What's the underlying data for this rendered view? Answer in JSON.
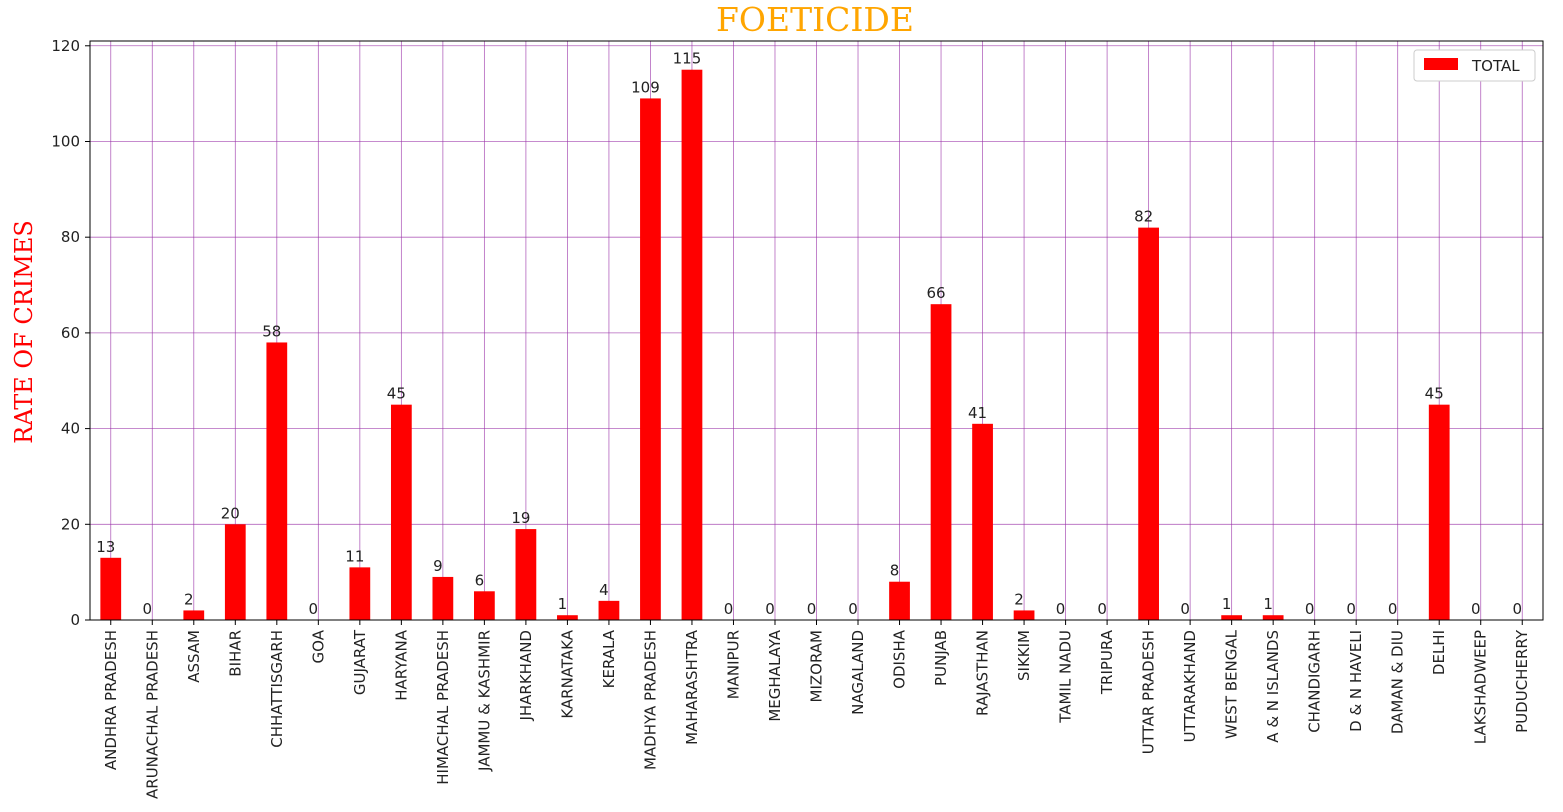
{
  "chart_data": {
    "type": "bar",
    "title": "FOETICIDE",
    "xlabel": "",
    "ylabel": "RATE OF CRIMES",
    "ylim": [
      0,
      121
    ],
    "yticks": [
      0,
      20,
      40,
      60,
      80,
      100,
      120
    ],
    "grid": true,
    "legend_position": "top-right",
    "categories": [
      "ANDHRA PRADESH",
      "ARUNACHAL PRADESH",
      "ASSAM",
      "BIHAR",
      "CHHATTISGARH",
      "GOA",
      "GUJARAT",
      "HARYANA",
      "HIMACHAL PRADESH",
      "JAMMU & KASHMIR",
      "JHARKHAND",
      "KARNATAKA",
      "KERALA",
      "MADHYA PRADESH",
      "MAHARASHTRA",
      "MANIPUR",
      "MEGHALAYA",
      "MIZORAM",
      "NAGALAND",
      "ODISHA",
      "PUNJAB",
      "RAJASTHAN",
      "SIKKIM",
      "TAMIL NADU",
      "TRIPURA",
      "UTTAR PRADESH",
      "UTTARAKHAND",
      "WEST BENGAL",
      "A & N ISLANDS",
      "CHANDIGARH",
      "D & N HAVELI",
      "DAMAN & DIU",
      "DELHI",
      "LAKSHADWEEP",
      "PUDUCHERRY"
    ],
    "series": [
      {
        "name": "TOTAL",
        "values": [
          13,
          0,
          2,
          20,
          58,
          0,
          11,
          45,
          9,
          6,
          19,
          1,
          4,
          109,
          115,
          0,
          0,
          0,
          0,
          8,
          66,
          41,
          2,
          0,
          0,
          82,
          0,
          1,
          1,
          0,
          0,
          0,
          45,
          0,
          0
        ]
      }
    ],
    "colors": {
      "bar": "#ff0000",
      "title": "#ffa500",
      "ylabel": "#ff0000",
      "grid": "#9932a8"
    }
  }
}
